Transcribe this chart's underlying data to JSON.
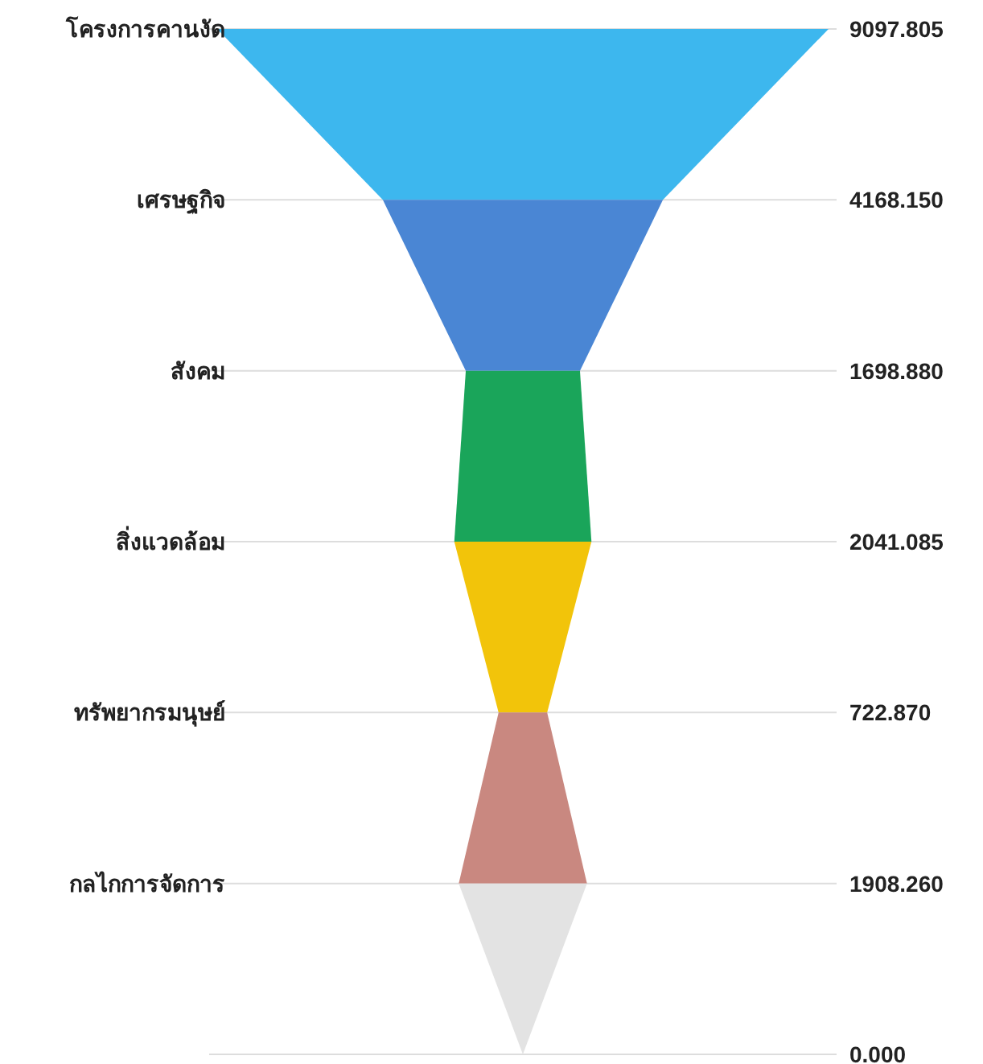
{
  "chart_data": {
    "type": "other",
    "categories": [
      "โครงการคานงัด",
      "เศรษฐกิจ",
      "สังคม",
      "สิ่งแวดล้อม",
      "ทรัพยากรมนุษย์",
      "กลไกการจัดการ",
      null
    ],
    "values": [
      9097.805,
      4168.15,
      1698.88,
      2041.085,
      722.87,
      1908.26,
      0.0
    ],
    "value_labels": [
      "9097.805",
      "4168.150",
      "1698.880",
      "2041.085",
      "722.870",
      "1908.260",
      "0.000"
    ],
    "colors": [
      "#3db7ee",
      "#4a86d4",
      "#1aa55a",
      "#f2c40a",
      "#c98880",
      "#e3e3e3",
      null
    ]
  }
}
